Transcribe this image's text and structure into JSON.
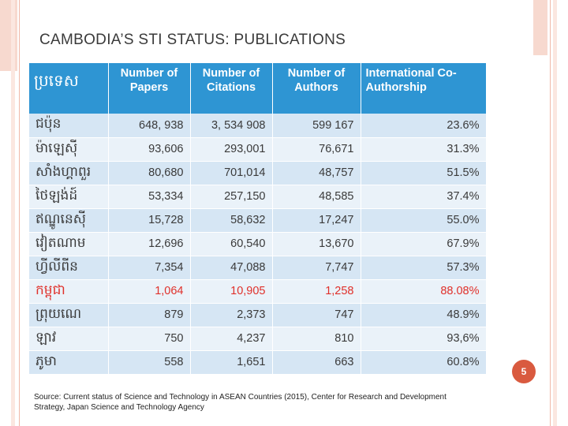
{
  "title": "CAMBODIA’S STI STATUS: PUBLICATIONS",
  "table": {
    "headers": [
      "ប្រទេស",
      "Number of Papers",
      "Number of Citations",
      "Number of Authors",
      "International Co-Authorship"
    ],
    "rows": [
      [
        "ជប៉ុន",
        "648, 938",
        "3, 534 908",
        "599 167",
        "23.6%"
      ],
      [
        "ម៉ាឡេស៊ី",
        "93,606",
        "293,001",
        "76,671",
        "31.3%"
      ],
      [
        "សាំងហ្គាពួរ",
        "80,680",
        "701,014",
        "48,757",
        "51.5%"
      ],
      [
        "ថៃឡង់ដ៍",
        "53,334",
        "257,150",
        "48,585",
        "37.4%"
      ],
      [
        "ឥណ្ឌូនេស៊ី",
        "15,728",
        "58,632",
        "17,247",
        "55.0%"
      ],
      [
        "វៀតណាម",
        "12,696",
        "60,540",
        "13,670",
        "67.9%"
      ],
      [
        "ហ្វីលីពីន",
        "7,354",
        "47,088",
        "7,747",
        "57.3%"
      ],
      [
        "កម្ពុជា",
        "1,064",
        "10,905",
        "1,258",
        "88.08%"
      ],
      [
        "ព្រុយណេ",
        "879",
        "2,373",
        "747",
        "48.9%"
      ],
      [
        "ឡាវ",
        "750",
        "4,237",
        "810",
        "93,6%"
      ],
      [
        "ភូមា",
        "558",
        "1,651",
        "663",
        "60.8%"
      ]
    ],
    "highlight_row": 7
  },
  "page_number": "5",
  "source": "Source: Current status of Science and Technology in ASEAN Countries (2015), Center for Research and Development Strategy, Japan Science and Technology Agency",
  "colors": {
    "header_bg": "#2e95d3",
    "row_odd": "#d6e6f4",
    "row_even": "#eaf2f9",
    "highlight_text": "#e0302a",
    "accent": "#d95a3f"
  }
}
